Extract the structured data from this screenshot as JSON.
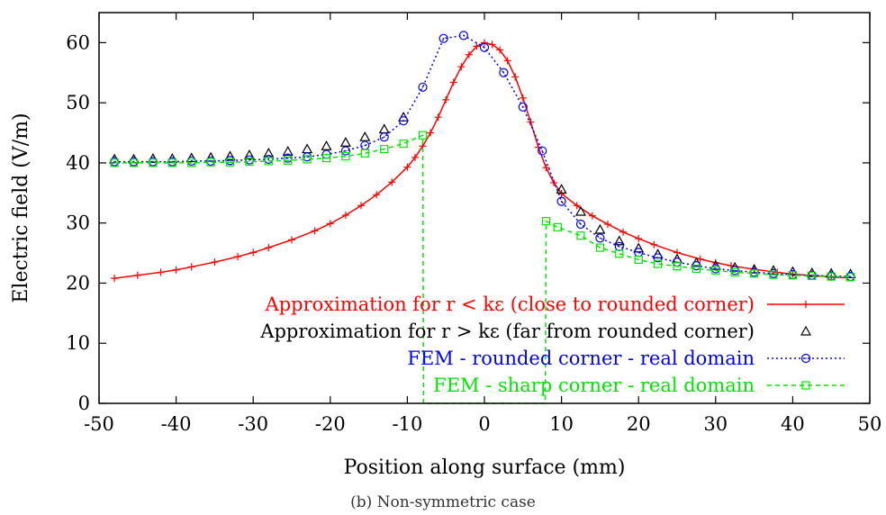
{
  "chart_data": {
    "type": "line",
    "title": "",
    "xlabel": "Position along surface (mm)",
    "ylabel": "Electric field (V/m)",
    "xlim": [
      -50,
      50
    ],
    "ylim": [
      0,
      65
    ],
    "xticks": [
      -50,
      -40,
      -30,
      -20,
      -10,
      0,
      10,
      20,
      30,
      40,
      50
    ],
    "yticks": [
      0,
      10,
      20,
      30,
      40,
      50,
      60
    ],
    "grid": false,
    "legend_position": "bottom-right",
    "series": [
      {
        "name": "Approximation for r < kε (close to rounded corner)",
        "color": "#ff0000",
        "style": "line-plus",
        "x": [
          -48,
          -45,
          -42,
          -40,
          -38,
          -35,
          -32,
          -30,
          -28,
          -25,
          -22,
          -20,
          -18,
          -16,
          -14,
          -12,
          -10,
          -9,
          -8,
          -7,
          -6,
          -5,
          -4,
          -3,
          -2,
          -1,
          0,
          1,
          2,
          3,
          4,
          5,
          6,
          7,
          8,
          9,
          10,
          12,
          14,
          16,
          18,
          20,
          22,
          25,
          28,
          30,
          32,
          35,
          38,
          40,
          42,
          45,
          47
        ],
        "y": [
          20.8,
          21.3,
          21.8,
          22.2,
          22.7,
          23.5,
          24.4,
          25.1,
          25.9,
          27.2,
          28.7,
          29.9,
          31.3,
          32.9,
          34.7,
          36.8,
          39.3,
          40.9,
          42.8,
          45.0,
          47.6,
          50.5,
          53.4,
          56.0,
          58.0,
          59.4,
          60.0,
          59.7,
          58.8,
          57.0,
          54.3,
          50.8,
          46.8,
          42.6,
          39.2,
          36.7,
          34.9,
          32.9,
          31.2,
          29.8,
          28.5,
          27.4,
          26.4,
          25.1,
          24.0,
          23.4,
          22.9,
          22.3,
          21.8,
          21.5,
          21.3,
          21.0,
          20.9
        ]
      },
      {
        "name": "Approximation for r > kε (far from rounded corner)",
        "color": "#000000",
        "style": "triangle",
        "x": [
          -48,
          -45.5,
          -43,
          -40.5,
          -38,
          -35.5,
          -33,
          -30.5,
          -28,
          -25.5,
          -23,
          -20.5,
          -18,
          -15.5,
          -13,
          -10.5,
          10,
          12.5,
          15,
          17.5,
          20,
          22.5,
          25,
          27.5,
          30,
          32.5,
          35,
          37.5,
          40,
          42.5,
          45,
          47.5
        ],
        "y": [
          40.6,
          40.6,
          40.7,
          40.7,
          40.8,
          40.9,
          41.1,
          41.3,
          41.6,
          41.9,
          42.3,
          42.8,
          43.4,
          44.3,
          45.6,
          47.6,
          35.6,
          31.9,
          28.9,
          27.0,
          25.8,
          24.8,
          24.0,
          23.4,
          22.9,
          22.6,
          22.3,
          22.1,
          21.9,
          21.7,
          21.6,
          21.5
        ]
      },
      {
        "name": "FEM - rounded corner - real domain",
        "color": "#0000ff",
        "style": "dotted-circle",
        "x": [
          -48,
          -45.5,
          -43,
          -40.5,
          -38,
          -35.5,
          -33,
          -30.5,
          -28,
          -25.5,
          -23,
          -20.5,
          -18,
          -15.5,
          -13,
          -10.5,
          -8,
          -5.3,
          -2.7,
          0,
          2.5,
          5,
          7.5,
          10,
          12.5,
          15,
          17.5,
          20,
          22.5,
          25,
          27.5,
          30,
          32.5,
          35,
          37.5,
          40,
          42.5,
          45,
          47.5
        ],
        "y": [
          40.2,
          40.2,
          40.2,
          40.2,
          40.3,
          40.3,
          40.4,
          40.5,
          40.6,
          40.8,
          41.0,
          41.4,
          42.0,
          42.9,
          44.3,
          47.0,
          52.6,
          60.7,
          61.2,
          59.2,
          55.0,
          49.3,
          42.0,
          33.6,
          29.8,
          27.5,
          26.1,
          25.1,
          24.2,
          23.5,
          22.9,
          22.4,
          22.1,
          21.8,
          21.6,
          21.4,
          21.3,
          21.2,
          21.1
        ]
      },
      {
        "name": "FEM - sharp corner - real domain",
        "color": "#00e600",
        "style": "dashed-square",
        "x": [
          -48,
          -45.5,
          -43,
          -40.5,
          -38,
          -35.5,
          -33,
          -30.5,
          -28,
          -25.5,
          -23,
          -20.5,
          -18,
          -15.5,
          -13,
          -10.5,
          -8,
          -7.9,
          7.9,
          8,
          9.5,
          12.5,
          15,
          17.5,
          20,
          22.5,
          25,
          27.5,
          30,
          32.5,
          35,
          37.5,
          40,
          42.5,
          45,
          47.5
        ],
        "y": [
          40.0,
          40.0,
          40.0,
          40.0,
          40.0,
          40.1,
          40.1,
          40.2,
          40.3,
          40.4,
          40.6,
          40.8,
          41.1,
          41.6,
          42.3,
          43.2,
          44.6,
          0,
          0,
          30.3,
          29.3,
          27.9,
          25.9,
          24.9,
          23.9,
          23.2,
          22.8,
          22.4,
          22.1,
          21.8,
          21.6,
          21.4,
          21.3,
          21.2,
          21.1,
          21.0
        ]
      }
    ]
  },
  "caption": "(b) Non-symmetric case"
}
